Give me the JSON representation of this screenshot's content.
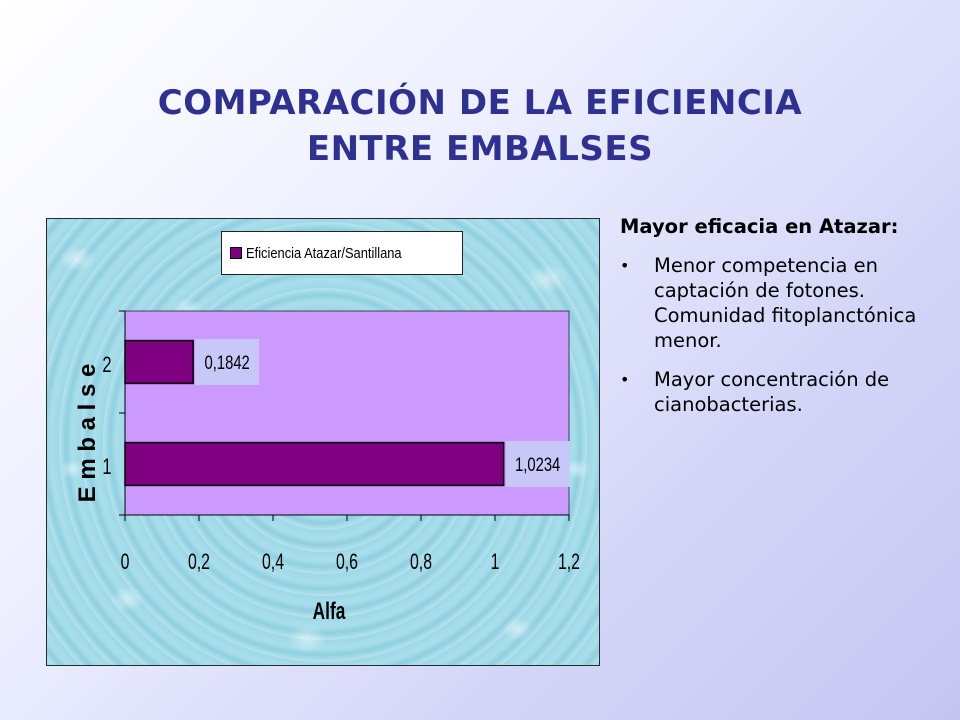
{
  "title": {
    "line1": "COMPARACIÓN DE LA EFICIENCIA",
    "line2": "ENTRE EMBALSES"
  },
  "chart_data": {
    "type": "bar",
    "orientation": "horizontal",
    "categories": [
      "1",
      "2"
    ],
    "series": [
      {
        "name": "Eficiencia Atazar/Santillana",
        "values": [
          1.0234,
          0.1842
        ]
      }
    ],
    "data_labels": [
      "1,0234",
      "0,1842"
    ],
    "xlabel": "Alfa",
    "ylabel": "E m b a l s e",
    "xlim": [
      0,
      1.2
    ],
    "xticks": [
      "0",
      "0,2",
      "0,4",
      "0,6",
      "0,8",
      "1",
      "1,2"
    ],
    "xtick_values": [
      0,
      0.2,
      0.4,
      0.6,
      0.8,
      1.0,
      1.2
    ],
    "legend_position": "top",
    "grid": false,
    "colors": {
      "bar": "#7f0080",
      "plot_area": "#cc99ff",
      "data_label_bg": "#c8c8f8"
    }
  },
  "side_text": {
    "lead": "Mayor eficacia en Atazar:",
    "bullet_symbol": "•",
    "bullets": [
      "Menor competencia en captación de fotones. Comunidad fitoplanctónica menor.",
      "Mayor concentración de cianobacterias."
    ]
  }
}
